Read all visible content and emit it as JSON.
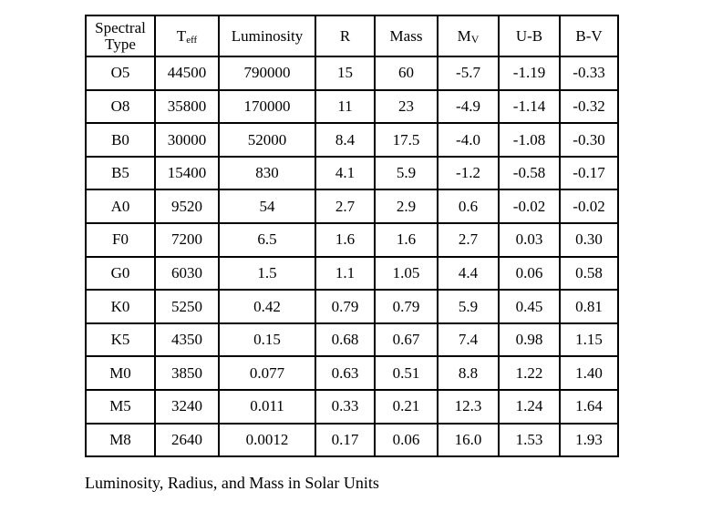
{
  "table": {
    "headers": [
      {
        "label": "Spectral Type"
      },
      {
        "main": "T",
        "sub": "eff"
      },
      {
        "label": "Luminosity"
      },
      {
        "label": "R"
      },
      {
        "label": "Mass"
      },
      {
        "main": "M",
        "sub": "V"
      },
      {
        "label": "U-B"
      },
      {
        "label": "B-V"
      }
    ],
    "rows": [
      [
        "O5",
        "44500",
        "790000",
        "15",
        "60",
        "-5.7",
        "-1.19",
        "-0.33"
      ],
      [
        "O8",
        "35800",
        "170000",
        "11",
        "23",
        "-4.9",
        "-1.14",
        "-0.32"
      ],
      [
        "B0",
        "30000",
        "52000",
        "8.4",
        "17.5",
        "-4.0",
        "-1.08",
        "-0.30"
      ],
      [
        "B5",
        "15400",
        "830",
        "4.1",
        "5.9",
        "-1.2",
        "-0.58",
        "-0.17"
      ],
      [
        "A0",
        "9520",
        "54",
        "2.7",
        "2.9",
        "0.6",
        "-0.02",
        "-0.02"
      ],
      [
        "F0",
        "7200",
        "6.5",
        "1.6",
        "1.6",
        "2.7",
        "0.03",
        "0.30"
      ],
      [
        "G0",
        "6030",
        "1.5",
        "1.1",
        "1.05",
        "4.4",
        "0.06",
        "0.58"
      ],
      [
        "K0",
        "5250",
        "0.42",
        "0.79",
        "0.79",
        "5.9",
        "0.45",
        "0.81"
      ],
      [
        "K5",
        "4350",
        "0.15",
        "0.68",
        "0.67",
        "7.4",
        "0.98",
        "1.15"
      ],
      [
        "M0",
        "3850",
        "0.077",
        "0.63",
        "0.51",
        "8.8",
        "1.22",
        "1.40"
      ],
      [
        "M5",
        "3240",
        "0.011",
        "0.33",
        "0.21",
        "12.3",
        "1.24",
        "1.64"
      ],
      [
        "M8",
        "2640",
        "0.0012",
        "0.17",
        "0.06",
        "16.0",
        "1.53",
        "1.93"
      ]
    ]
  },
  "caption": "Luminosity, Radius, and Mass in Solar Units"
}
